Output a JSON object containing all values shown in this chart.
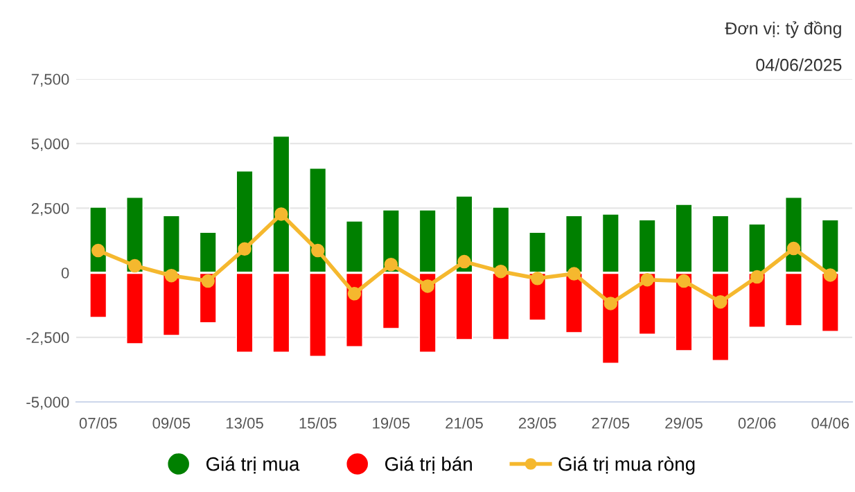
{
  "chart_data": {
    "type": "bar",
    "annotations": [
      "Đơn vị: tỷ đồng",
      "04/06/2025"
    ],
    "categories": [
      "07/05",
      null,
      "09/05",
      null,
      "13/05",
      null,
      "15/05",
      null,
      "19/05",
      null,
      "21/05",
      null,
      "23/05",
      null,
      "27/05",
      null,
      "29/05",
      null,
      "02/06",
      null,
      "04/06"
    ],
    "series": [
      {
        "name": "Giá trị mua",
        "color": "#008000",
        "values": [
          2540,
          2920,
          2210,
          1570,
          3940,
          5290,
          4050,
          2000,
          2430,
          2430,
          2970,
          2540,
          1570,
          2210,
          2270,
          2050,
          2650,
          2210,
          1890,
          2920,
          2050
        ]
      },
      {
        "name": "Giá trị bán",
        "color": "#ff0000",
        "values": [
          -1730,
          -2750,
          -2430,
          -1940,
          -3080,
          -3080,
          -3240,
          -2860,
          -2160,
          -3080,
          -2590,
          -2590,
          -1840,
          -2320,
          -3510,
          -2380,
          -3020,
          -3400,
          -2110,
          -2050,
          -2270
        ]
      },
      {
        "name": "Giá trị mua ròng",
        "type": "line",
        "color": "#f5b82e",
        "marker": "circle",
        "values": [
          860,
          270,
          -110,
          -320,
          920,
          2270,
          860,
          -810,
          320,
          -520,
          430,
          50,
          -220,
          -40,
          -1190,
          -270,
          -320,
          -1130,
          -160,
          940,
          -90
        ]
      }
    ],
    "ylim": [
      -5000,
      7500
    ],
    "yticks": [
      {
        "value": -5000,
        "label": "-5,000"
      },
      {
        "value": -2500,
        "label": "-2,500"
      },
      0,
      {
        "value": 2500,
        "label": "2,500"
      },
      {
        "value": 5000,
        "label": "5,000"
      },
      {
        "value": 7500,
        "label": "7,500"
      }
    ],
    "grid": "y",
    "legend": "bottom",
    "stacked": true
  }
}
